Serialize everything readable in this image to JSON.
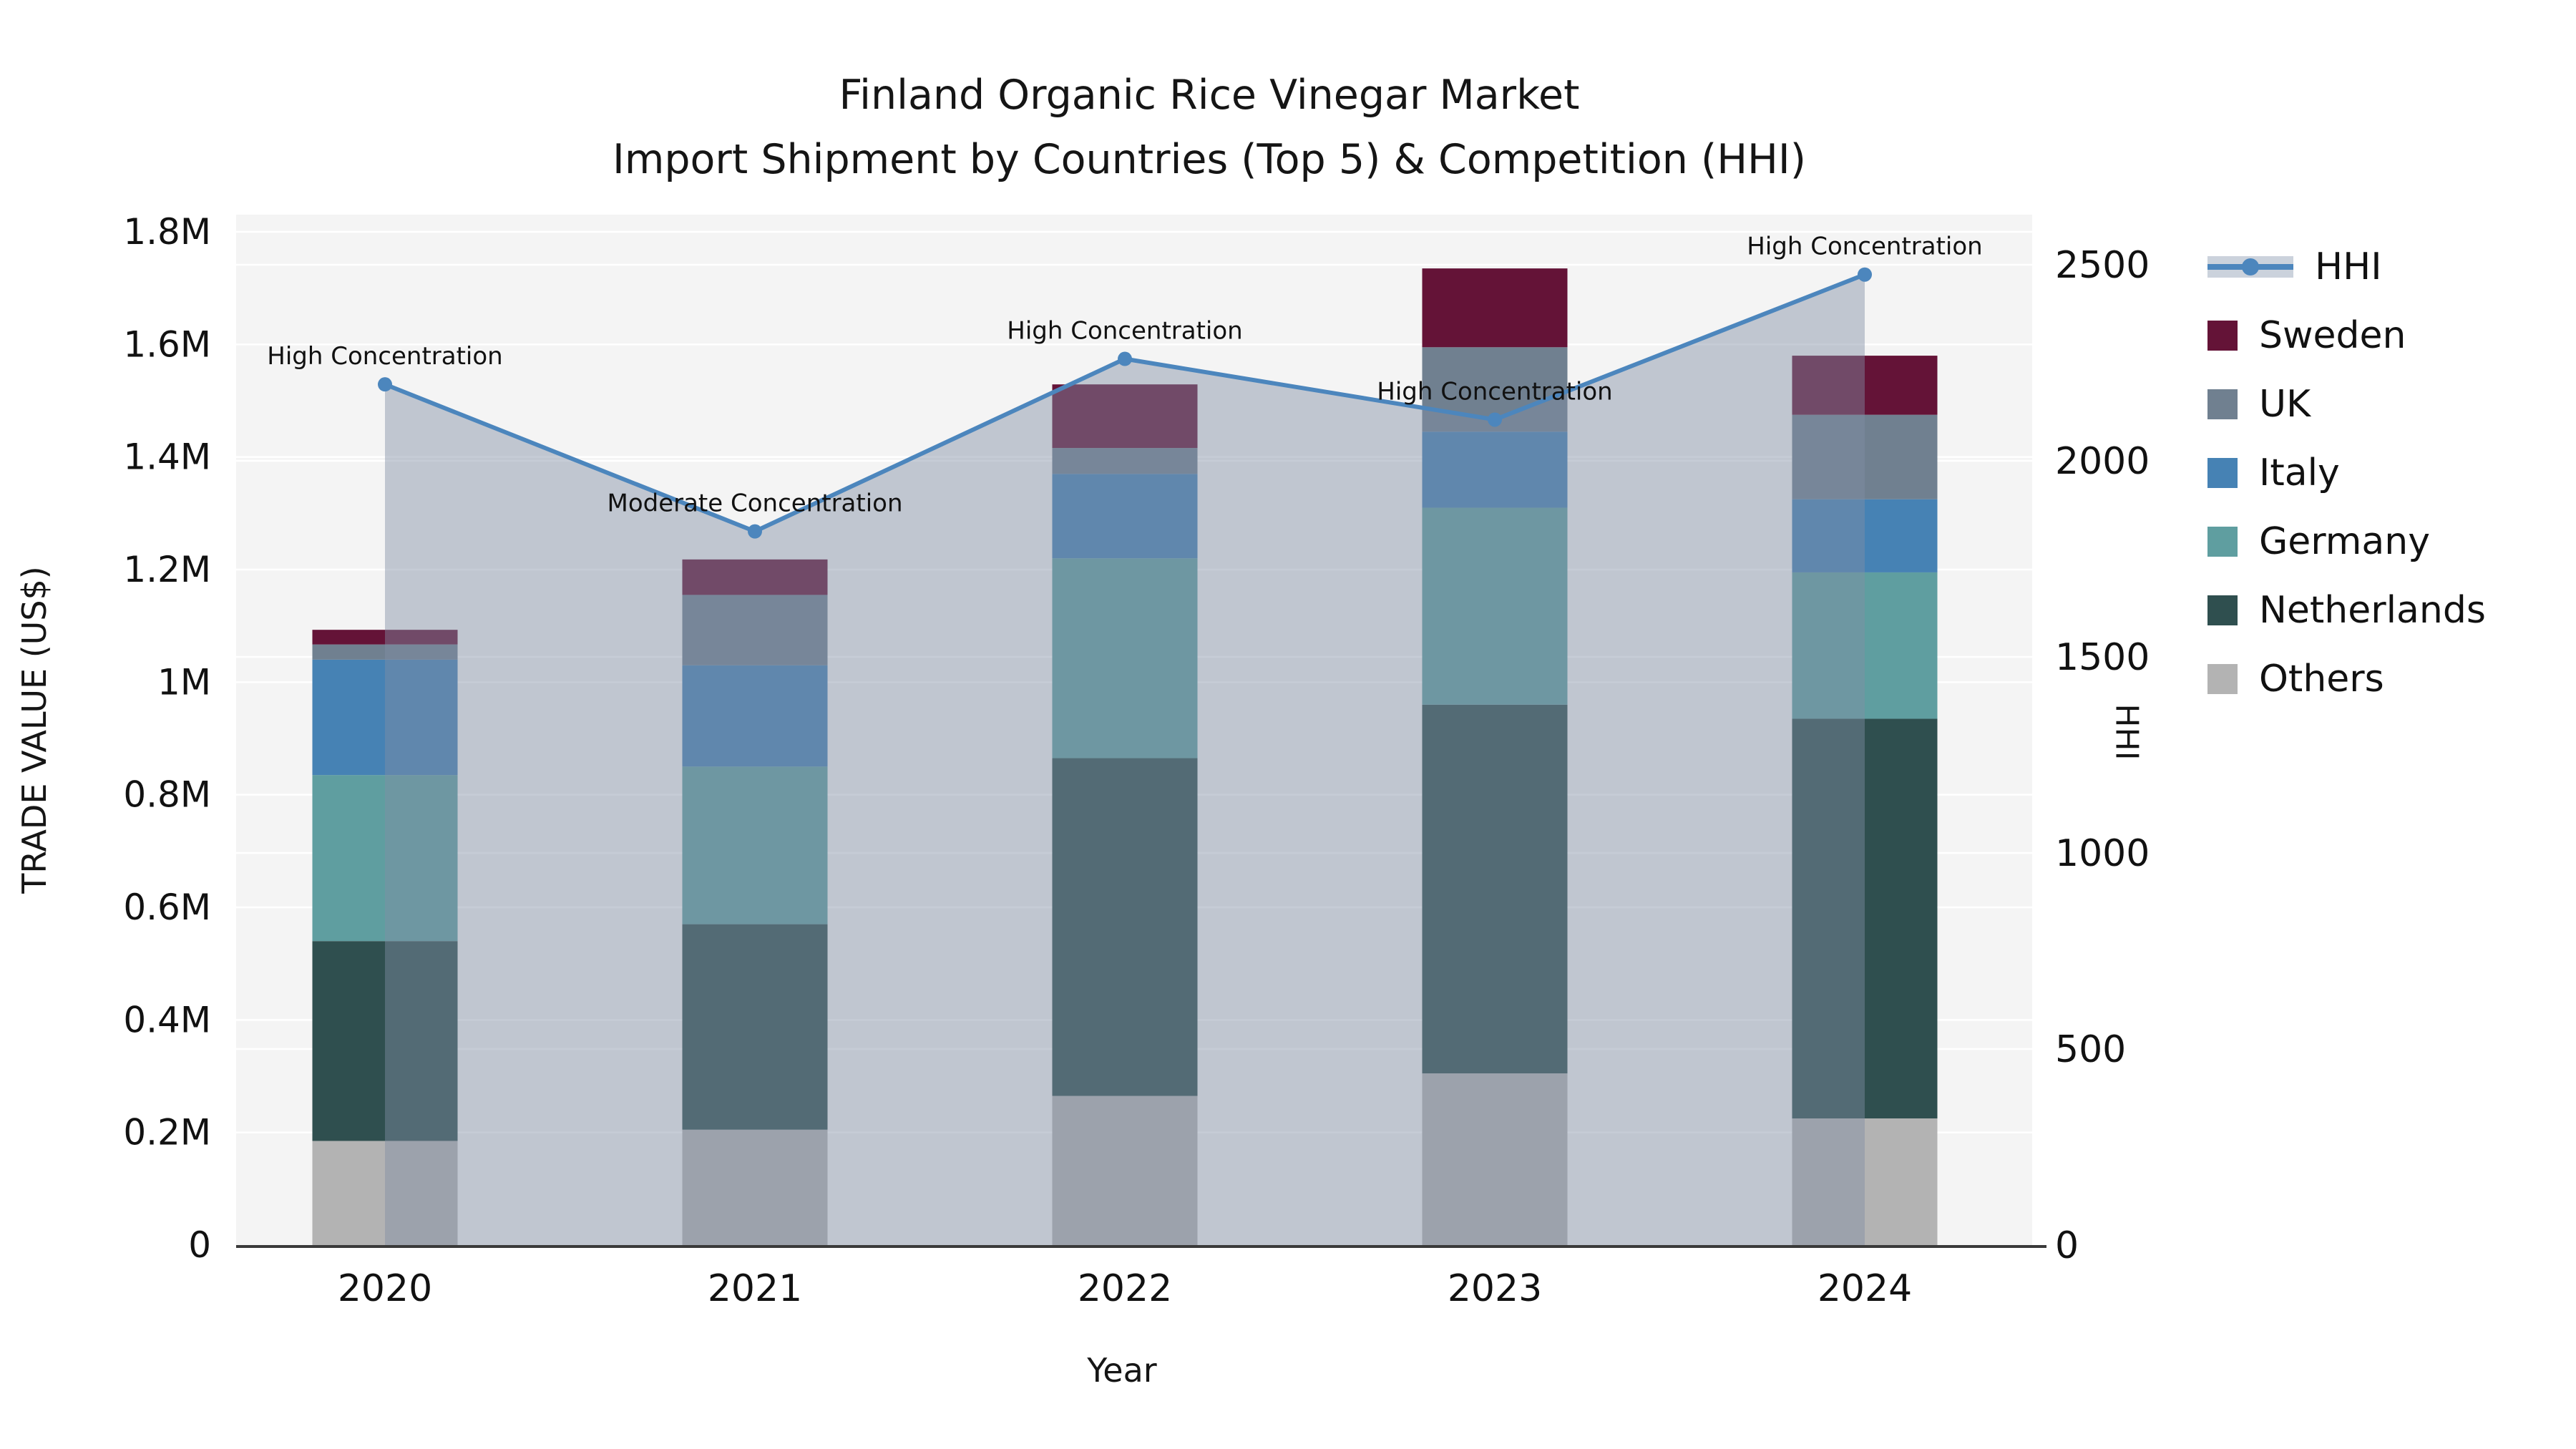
{
  "title": {
    "line1": "Finland Organic Rice Vinegar Market",
    "line2": "Import Shipment by Countries (Top 5) & Competition (HHI)"
  },
  "axes": {
    "x": {
      "label": "Year",
      "ticks": [
        "2020",
        "2021",
        "2022",
        "2023",
        "2024"
      ]
    },
    "y_left": {
      "label": "TRADE VALUE (US$)",
      "ticks": [
        "0",
        "0.2M",
        "0.4M",
        "0.6M",
        "0.8M",
        "1M",
        "1.2M",
        "1.4M",
        "1.6M",
        "1.8M"
      ],
      "tick_values_M": [
        0,
        0.2,
        0.4,
        0.6,
        0.8,
        1.0,
        1.2,
        1.4,
        1.6,
        1.8
      ],
      "max_M": 1.8
    },
    "y_right": {
      "label": "HHI",
      "ticks": [
        "0",
        "500",
        "1000",
        "1500",
        "2000",
        "2500"
      ],
      "tick_values": [
        0,
        500,
        1000,
        1500,
        2000,
        2500
      ],
      "max": 2500
    }
  },
  "legend": [
    {
      "label": "HHI",
      "type": "line",
      "color": "#4c86bd"
    },
    {
      "label": "Sweden",
      "type": "box",
      "color": "#641337"
    },
    {
      "label": "UK",
      "type": "box",
      "color": "#708090"
    },
    {
      "label": "Italy",
      "type": "box",
      "color": "#4682b4"
    },
    {
      "label": "Germany",
      "type": "box",
      "color": "#5f9ea0"
    },
    {
      "label": "Netherlands",
      "type": "box",
      "color": "#2f4f4f"
    },
    {
      "label": "Others",
      "type": "box",
      "color": "#b3b3b3"
    }
  ],
  "chart_data": {
    "type": "bar",
    "subtype": "stacked-bar-with-line-overlay",
    "categories": [
      "2020",
      "2021",
      "2022",
      "2023",
      "2024"
    ],
    "bar_units": "Trade value, millions US$",
    "series": [
      {
        "name": "Others",
        "color": "#b3b3b3",
        "values": [
          0.185,
          0.205,
          0.265,
          0.305,
          0.225
        ]
      },
      {
        "name": "Netherlands",
        "color": "#2f4f4f",
        "values": [
          0.355,
          0.365,
          0.6,
          0.655,
          0.71
        ]
      },
      {
        "name": "Germany",
        "color": "#5f9ea0",
        "values": [
          0.295,
          0.28,
          0.355,
          0.35,
          0.26
        ]
      },
      {
        "name": "Italy",
        "color": "#4682b4",
        "values": [
          0.205,
          0.18,
          0.15,
          0.135,
          0.13
        ]
      },
      {
        "name": "UK",
        "color": "#708090",
        "values": [
          0.027,
          0.125,
          0.046,
          0.15,
          0.15
        ]
      },
      {
        "name": "Sweden",
        "color": "#641337",
        "values": [
          0.026,
          0.063,
          0.113,
          0.14,
          0.105
        ]
      }
    ],
    "line": {
      "name": "HHI",
      "axis": "right",
      "color": "#4c86bd",
      "area_fill": "rgba(128,142,164,0.45)",
      "values": [
        2195,
        1820,
        2260,
        2105,
        2475
      ]
    },
    "annotations": [
      {
        "year": "2020",
        "text": "High Concentration"
      },
      {
        "year": "2021",
        "text": "Moderate Concentration"
      },
      {
        "year": "2022",
        "text": "High Concentration"
      },
      {
        "year": "2023",
        "text": "High Concentration"
      },
      {
        "year": "2024",
        "text": "High Concentration"
      }
    ],
    "ylim_left_M": [
      0,
      1.8
    ],
    "ylim_right": [
      0,
      2500
    ],
    "grid": true,
    "legend_position": "outside-right-top",
    "plot_background": "#f4f4f4"
  }
}
